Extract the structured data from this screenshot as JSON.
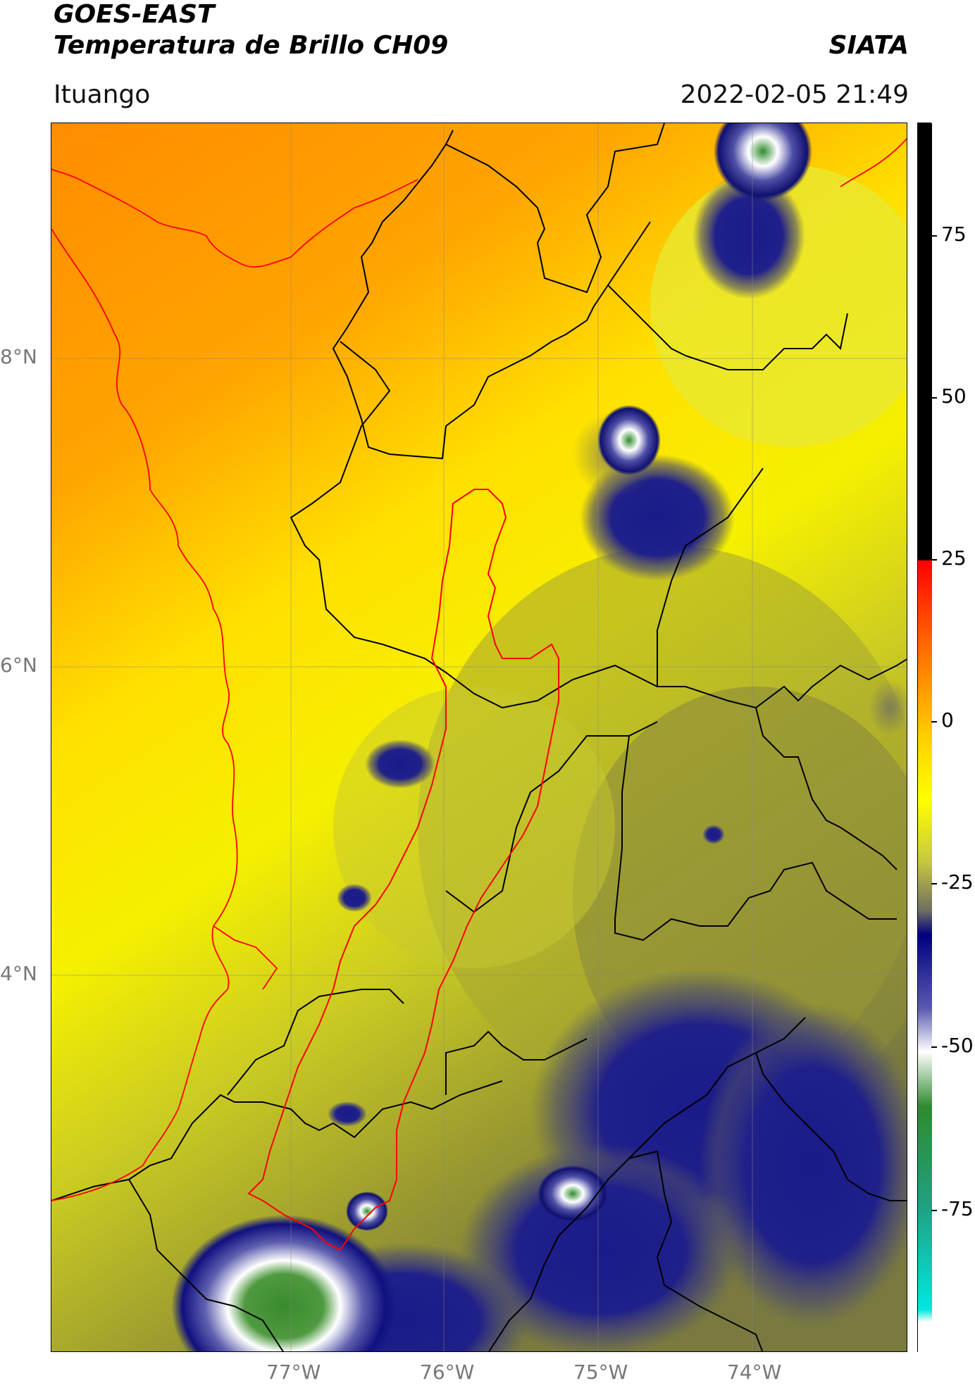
{
  "header": {
    "title_line1": "GOES-EAST",
    "title_line2": "Temperatura de Brillo CH09",
    "brand": "SIATA",
    "location": "Ituango",
    "datetime": "2022-02-05 21:49"
  },
  "map": {
    "lat_labels": [
      "8°N",
      "6°N",
      "4°N"
    ],
    "lon_labels": [
      "77°W",
      "76°W",
      "75°W",
      "74°W"
    ],
    "boundary_colors": {
      "coastline": "#ff0000",
      "admin": "#000000",
      "basin": "#ff0000"
    }
  },
  "colorbar": {
    "labels": [
      "75",
      "50",
      "25",
      "0",
      "-25",
      "-50",
      "-75"
    ],
    "stops": [
      "#000000",
      "#ff0000",
      "#ff8c00",
      "#ffff00",
      "#a0a030",
      "#000080",
      "#ffffff",
      "#2e8b2e",
      "#00e0d0",
      "#ffffff"
    ]
  }
}
